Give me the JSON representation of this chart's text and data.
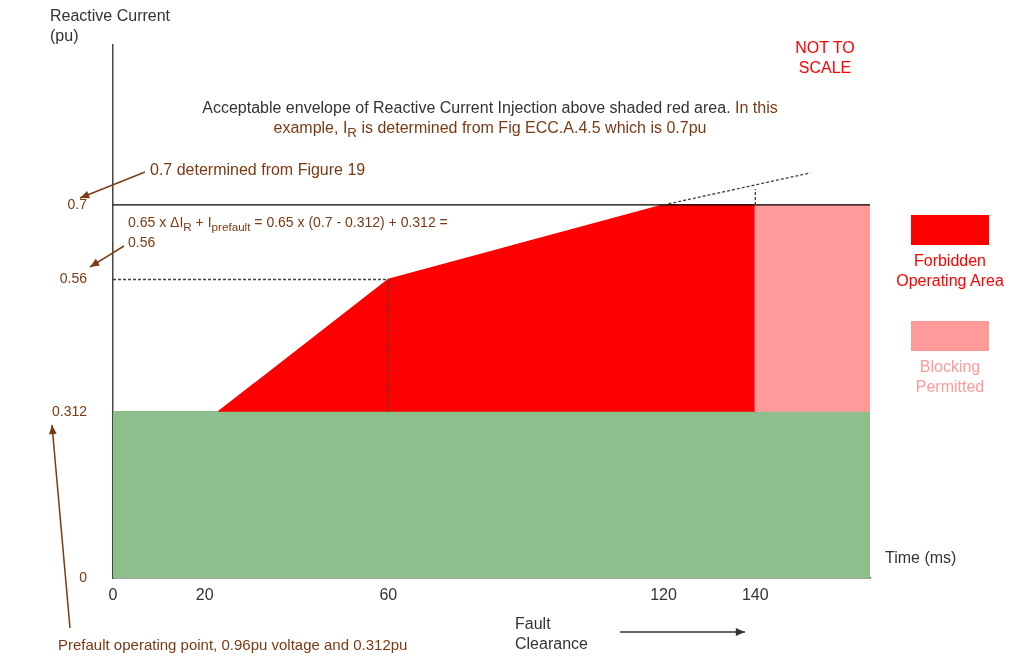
{
  "chart_data": {
    "type": "area",
    "ylabel": "Reactive Current (pu)",
    "xlabel": "Time (ms)",
    "annotations": [
      "NOT TO SCALE",
      "Acceptable envelope of Reactive Current Injection above shaded red area.",
      "In this example, I$_{R}$ is determined from Fig ECC.A.4.5 which is 0.7pu",
      "0.7 determined from Figure 19",
      "0.65 x ΔI$_{R}$ + I$_{prefault}$ = 0.65 x (0.7 - 0.312) + 0.312 = 0.56",
      "Prefault operating point, 0.96pu voltage and 0.312pu",
      "Fault Clearance"
    ],
    "xlim": [
      0,
      165
    ],
    "xticks": [
      0,
      20,
      60,
      120,
      140
    ],
    "ylim": [
      0,
      1
    ],
    "yticks": [
      0,
      0.312,
      0.56,
      0.7
    ],
    "legend": "right",
    "series": [
      {
        "x": [
          0,
          0,
          165,
          165
        ],
        "values": [
          0,
          0.312,
          0.312,
          0
        ],
        "color": "#8cbf8c"
      },
      {
        "name": "Forbidden Operating Area",
        "x": [
          23,
          60,
          120,
          140,
          140
        ],
        "values": [
          0.312,
          0.56,
          0.7,
          0.7,
          0.312
        ],
        "color": "#ff0000"
      },
      {
        "name": "Blocking Permitted",
        "x": [
          140,
          140,
          165,
          165
        ],
        "values": [
          0.312,
          0.7,
          0.7,
          0.312
        ],
        "color": "#ff9a9a"
      },
      {
        "type": "line",
        "x": [
          0,
          60,
          60
        ],
        "values": [
          0.56,
          0.56,
          0.312
        ],
        "color": "#404040",
        "line_style": "dashed"
      },
      {
        "type": "line",
        "x": [
          0,
          165
        ],
        "values": [
          0.7,
          0.7
        ],
        "color": "#000000"
      },
      {
        "type": "line",
        "x": [
          120,
          152
        ],
        "values": [
          0.7,
          0.76
        ],
        "color": "#404040",
        "line_style": "dashed"
      },
      {
        "type": "line",
        "x": [
          140,
          140
        ],
        "values": [
          0.7,
          0.73
        ],
        "color": "#404040",
        "line_style": "dashed"
      }
    ]
  }
}
